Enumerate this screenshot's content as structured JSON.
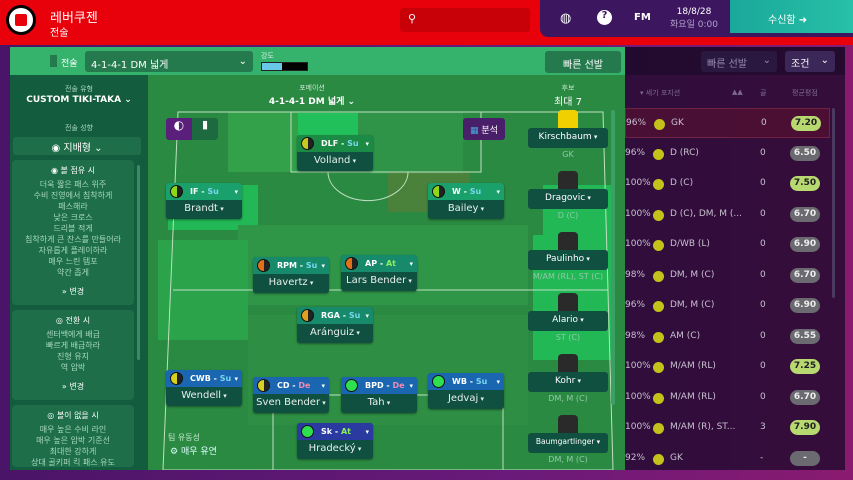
{
  "header": {
    "club": "레버쿠젠",
    "section": "전술",
    "date": "18/8/28",
    "time": "화요일 0:00",
    "fm": "FM",
    "inbox": "수신함"
  },
  "toolbar": {
    "tactic_label": "전술",
    "tactic": "4-1-4-1 DM 넓게",
    "intensity_label": "강도",
    "intensity": 0.45,
    "quick_pick": "빠른 선발"
  },
  "rightbar": {
    "quick_pick": "빠른 선발",
    "filter": "조건"
  },
  "left": {
    "style_label": "전술 유형",
    "style": "CUSTOM TIKI-TAKA",
    "mentality_label": "전술 성향",
    "mentality": "지배형",
    "in_possession": {
      "title": "볼 점유 시",
      "items": [
        "더욱 짧은 패스 위주",
        "수비 진영에서 침착하게",
        "패스해라",
        "낮은 크로스",
        "드리블 적게",
        "침착하게 큰 찬스를 만들어라",
        "자유롭게 플레이하라",
        "매우 느린 템포",
        "약간 좁게"
      ],
      "change": "변경"
    },
    "transition": {
      "title": "전환 시",
      "items": [
        "센터백에게 배급",
        "빠르게 배급하라",
        "진형 유지",
        "역 압박"
      ],
      "change": "변경"
    },
    "out_possession": {
      "title": "볼이 없을 시",
      "items": [
        "매우 높은 수비 라인",
        "매우 높은 압박 기준선",
        "최대한 강하게",
        "상대 골키퍼 킥 패스 유도"
      ]
    }
  },
  "pitch": {
    "formation_label": "포메이션",
    "formation": "4-1-4-1 DM 넓게",
    "analysis": "분석",
    "fluidity_label": "팀 유동성",
    "fluidity": "매우 유연",
    "players": [
      {
        "role": "DLF",
        "duty": "Su",
        "name": "Volland",
        "color": "#c8c820",
        "hdr": "#1b8a45"
      },
      {
        "role": "IF",
        "duty": "Su",
        "name": "Brandt",
        "color": "#8ed81a",
        "hdr": "#1aa06a"
      },
      {
        "role": "W",
        "duty": "Su",
        "name": "Bailey",
        "color": "#8ed81a",
        "hdr": "#1aa06a"
      },
      {
        "role": "RPM",
        "duty": "Su",
        "name": "Havertz",
        "color": "#e0701a",
        "hdr": "#168a6a"
      },
      {
        "role": "AP",
        "duty": "At",
        "name": "Lars Bender",
        "color": "#e0701a",
        "hdr": "#168a6a"
      },
      {
        "role": "RGA",
        "duty": "Su",
        "name": "Aránguiz",
        "color": "#e0a020",
        "hdr": "#168a6a"
      },
      {
        "role": "CWB",
        "duty": "Su",
        "name": "Wendell",
        "color": "#d8d020",
        "hdr": "#1a66b0"
      },
      {
        "role": "CD",
        "duty": "De",
        "name": "Sven Bender",
        "color": "#d8d020",
        "hdr": "#1a66b0"
      },
      {
        "role": "BPD",
        "duty": "De",
        "name": "Tah",
        "color": "#2ee050",
        "hdr": "#1a66b0"
      },
      {
        "role": "WB",
        "duty": "Su",
        "name": "Jedvaj",
        "color": "#2ee050",
        "hdr": "#1a66b0"
      },
      {
        "role": "Sk",
        "duty": "At",
        "name": "Hradecký",
        "color": "#2ee050",
        "hdr": "#2a3aa0"
      }
    ]
  },
  "subs": {
    "label": "후보",
    "max": "최대 7",
    "players": [
      {
        "name": "Kirschbaum",
        "pos": "GK"
      },
      {
        "name": "Dragovic",
        "pos": "D (C)"
      },
      {
        "name": "Paulinho",
        "pos": "M/AM (RL), ST (C)"
      },
      {
        "name": "Alario",
        "pos": "ST (C)"
      },
      {
        "name": "Kohr",
        "pos": "DM, M (C)"
      },
      {
        "name": "Baumgartlinger",
        "pos": "DM, M (C)"
      }
    ]
  },
  "list": {
    "headers": {
      "position": "세기 포지션",
      "stars": "▲▲",
      "goals": "골",
      "rating": "평균평점"
    },
    "rows": [
      {
        "pct": "96%",
        "pos": "GK",
        "goals": "0",
        "rating": "7.20",
        "good": true
      },
      {
        "pct": "96%",
        "pos": "D (RC)",
        "goals": "0",
        "rating": "6.50",
        "good": false
      },
      {
        "pct": "100%",
        "pos": "D (C)",
        "goals": "0",
        "rating": "7.50",
        "good": true
      },
      {
        "pct": "100%",
        "pos": "D (C), DM, M (...",
        "goals": "0",
        "rating": "6.70",
        "good": false
      },
      {
        "pct": "100%",
        "pos": "D/WB (L)",
        "goals": "0",
        "rating": "6.90",
        "good": false
      },
      {
        "pct": "98%",
        "pos": "DM, M (C)",
        "goals": "0",
        "rating": "6.70",
        "good": false
      },
      {
        "pct": "96%",
        "pos": "DM, M (C)",
        "goals": "0",
        "rating": "6.90",
        "good": false
      },
      {
        "pct": "98%",
        "pos": "AM (C)",
        "goals": "0",
        "rating": "6.55",
        "good": false
      },
      {
        "pct": "100%",
        "pos": "M/AM (RL)",
        "goals": "0",
        "rating": "7.25",
        "good": true
      },
      {
        "pct": "100%",
        "pos": "M/AM (RL)",
        "goals": "0",
        "rating": "6.70",
        "good": false
      },
      {
        "pct": "100%",
        "pos": "M/AM (R), ST...",
        "goals": "3",
        "rating": "7.90",
        "good": true
      },
      {
        "pct": "92%",
        "pos": "GK",
        "goals": "-",
        "rating": "-",
        "good": false
      }
    ]
  }
}
